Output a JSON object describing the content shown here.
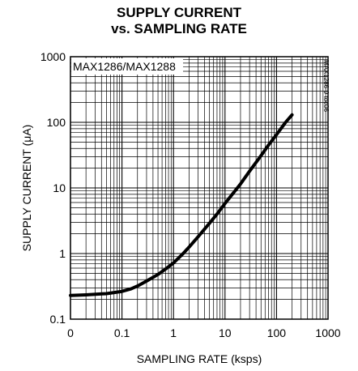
{
  "chart_data": {
    "type": "line",
    "title_line1": "SUPPLY CURRENT",
    "title_line2": "vs. SAMPLING RATE",
    "xlabel": "SAMPLING RATE (ksps)",
    "ylabel": "SUPPLY CURRENT (μA)",
    "x_scale": "log",
    "y_scale": "log",
    "xlim": [
      0.01,
      1000
    ],
    "ylim": [
      0.1,
      1000
    ],
    "x_tick_labels": [
      "0",
      "0.1",
      "1",
      "10",
      "100",
      "1000"
    ],
    "y_tick_labels": [
      "0.1",
      "1",
      "10",
      "100",
      "1000"
    ],
    "grid": true,
    "annotation": "MAX1286/MAX1288",
    "figure_code": "MAX1286-9 toc06",
    "series": [
      {
        "x": [
          0.01,
          0.02,
          0.05,
          0.1,
          0.15,
          0.2,
          0.3,
          0.5,
          0.7,
          1,
          1.5,
          2,
          3,
          5,
          7,
          10,
          20,
          30,
          50,
          70,
          100,
          150,
          200
        ],
        "y": [
          0.23,
          0.235,
          0.245,
          0.265,
          0.29,
          0.32,
          0.38,
          0.48,
          0.58,
          0.72,
          0.98,
          1.25,
          1.8,
          2.9,
          4.0,
          5.8,
          11.5,
          18,
          31,
          45,
          65,
          100,
          130
        ]
      }
    ]
  }
}
